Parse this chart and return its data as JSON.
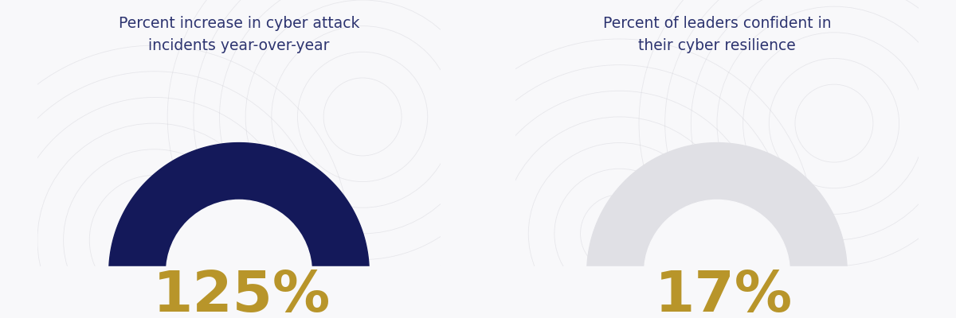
{
  "bg_color": "#f8f8fa",
  "dark_navy": "#14195a",
  "light_gray": "#e0e0e5",
  "gold": "#b8952a",
  "title_color": "#2d3470",
  "chart1_title": "Percent increase in cyber attack\nincidents year-over-year",
  "chart2_title": "Percent of leaders confident in\ntheir cyber resilience",
  "chart1_value": "125%",
  "chart2_value": "17%",
  "chart2_filled_pct": 17,
  "title_fontsize": 13.5,
  "value_fontsize": 52,
  "R_outer": 1.0,
  "R_inner": 0.56
}
